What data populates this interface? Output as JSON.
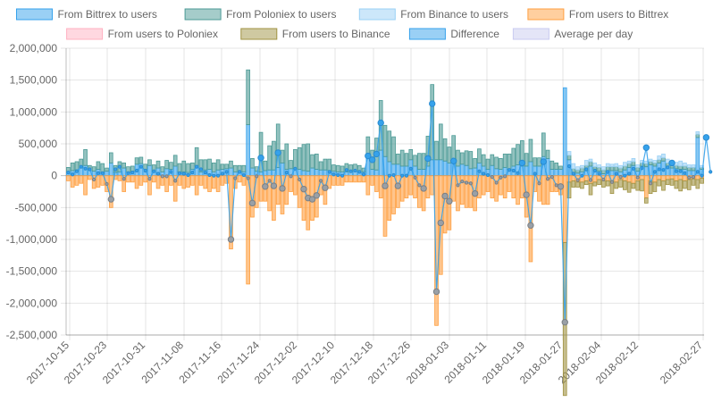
{
  "chart_data": {
    "type": "bar",
    "title": "",
    "xlabel": "",
    "ylabel": "",
    "ylim": [
      -2500000,
      2000000
    ],
    "y_ticks": [
      "2,000,000",
      "1,500,000",
      "1,000,000",
      "500,000",
      "0",
      "-500,000",
      "-1,000,000",
      "-1,500,000",
      "-2,000,000",
      "-2,500,000"
    ],
    "x_ticks": [
      "2017-10-15",
      "2017-10-23",
      "2017-10-31",
      "2017-11-08",
      "2017-11-16",
      "2017-11-24",
      "2017-12-02",
      "2017-12-10",
      "2017-12-18",
      "2017-12-26",
      "2018-01-03",
      "2018-01-11",
      "2018-01-19",
      "2018-01-27",
      "2018-02-04",
      "2018-02-12",
      "2018-02-27"
    ],
    "grid": true,
    "legend_position": "top",
    "series": [
      {
        "name": "From Bittrex to users",
        "color": "#36a2eb",
        "values": [
          60000,
          80000,
          90000,
          120000,
          160000,
          90000,
          70000,
          100000,
          60000,
          70000,
          200000,
          50000,
          60000,
          120000,
          60000,
          70000,
          180000,
          190000,
          100000,
          160000,
          70000,
          120000,
          60000,
          110000,
          100000,
          150000,
          60000,
          60000,
          50000,
          100000,
          160000,
          60000,
          90000,
          100000,
          60000,
          90000,
          100000,
          110000,
          120000,
          60000,
          60000,
          60000,
          800000,
          120000,
          70000,
          60000,
          80000,
          90000,
          90000,
          130000,
          200000,
          100000,
          110000,
          110000,
          100000,
          80000,
          70000,
          120000,
          100000,
          90000,
          90000,
          80000,
          70000,
          60000,
          60000,
          60000,
          60000,
          70000,
          60000,
          60000,
          350000,
          100000,
          90000,
          400000,
          300000,
          220000,
          180000,
          180000,
          150000,
          150000,
          250000,
          150000,
          100000,
          100000,
          150000,
          250000,
          250000,
          250000,
          230000,
          200000,
          250000,
          150000,
          180000,
          160000,
          110000,
          120000,
          200000,
          150000,
          100000,
          160000,
          110000,
          100000,
          130000,
          100000,
          150000,
          170000,
          150000,
          150000,
          220000,
          150000,
          150000,
          300000,
          270000,
          100000,
          100000,
          100000,
          1380000,
          250000,
          50000,
          40000,
          60000,
          80000,
          150000,
          80000,
          70000,
          30000,
          80000,
          80000,
          80000,
          60000,
          90000,
          130000,
          160000,
          70000,
          150000,
          140000,
          170000,
          150000,
          200000,
          230000,
          150000,
          120000,
          110000,
          100000,
          100000,
          80000,
          80000,
          600000,
          100000
        ]
      },
      {
        "name": "From Poloniex to users",
        "color": "#4b9a95",
        "values": [
          70000,
          120000,
          130000,
          140000,
          250000,
          70000,
          70000,
          120000,
          130000,
          50000,
          160000,
          110000,
          160000,
          80000,
          80000,
          80000,
          100000,
          100000,
          80000,
          90000,
          100000,
          110000,
          80000,
          130000,
          110000,
          170000,
          130000,
          170000,
          140000,
          100000,
          280000,
          190000,
          160000,
          160000,
          140000,
          160000,
          80000,
          70000,
          110000,
          100000,
          100000,
          100000,
          860000,
          150000,
          70000,
          620000,
          150000,
          380000,
          450000,
          680000,
          200000,
          400000,
          130000,
          300000,
          340000,
          410000,
          430000,
          210000,
          240000,
          130000,
          170000,
          180000,
          100000,
          100000,
          90000,
          130000,
          110000,
          110000,
          100000,
          60000,
          260000,
          300000,
          500000,
          780000,
          490000,
          480000,
          430000,
          160000,
          250000,
          200000,
          160000,
          170000,
          250000,
          250000,
          470000,
          1180000,
          290000,
          560000,
          350000,
          250000,
          380000,
          250000,
          180000,
          230000,
          270000,
          150000,
          220000,
          180000,
          160000,
          170000,
          180000,
          170000,
          210000,
          240000,
          280000,
          320000,
          400000,
          200000,
          350000,
          130000,
          130000,
          370000,
          130000,
          130000,
          100000,
          50000,
          0,
          70000,
          60000,
          50000,
          60000,
          80000,
          70000,
          60000,
          60000,
          60000,
          60000,
          60000,
          60000,
          60000,
          60000,
          60000,
          60000,
          60000,
          50000,
          50000,
          50000,
          50000,
          50000,
          50000,
          50000,
          50000,
          50000,
          50000,
          50000,
          50000,
          50000,
          50000,
          30000
        ]
      },
      {
        "name": "From Binance to users",
        "color": "#9ad0f5",
        "values": [
          0,
          0,
          0,
          0,
          0,
          0,
          0,
          0,
          0,
          0,
          0,
          0,
          0,
          0,
          0,
          0,
          0,
          0,
          0,
          0,
          0,
          0,
          0,
          0,
          0,
          0,
          0,
          0,
          0,
          0,
          0,
          0,
          0,
          0,
          0,
          0,
          0,
          0,
          0,
          0,
          0,
          0,
          0,
          0,
          0,
          0,
          0,
          0,
          0,
          0,
          0,
          0,
          0,
          0,
          0,
          0,
          0,
          0,
          0,
          0,
          0,
          0,
          0,
          0,
          0,
          0,
          0,
          0,
          0,
          0,
          0,
          0,
          0,
          0,
          0,
          0,
          0,
          0,
          0,
          0,
          0,
          0,
          0,
          0,
          0,
          0,
          0,
          0,
          0,
          0,
          0,
          0,
          0,
          0,
          0,
          0,
          0,
          0,
          0,
          0,
          0,
          0,
          0,
          0,
          0,
          0,
          0,
          0,
          0,
          0,
          0,
          0,
          0,
          0,
          0,
          0,
          0,
          60000,
          80000,
          50000,
          40000,
          80000,
          40000,
          60000,
          40000,
          50000,
          50000,
          40000,
          50000,
          40000,
          60000,
          40000,
          50000,
          40000,
          40000,
          40000,
          40000,
          40000,
          60000,
          60000,
          60000,
          50000,
          50000,
          80000,
          50000,
          40000,
          40000,
          40000,
          30000
        ]
      },
      {
        "name": "From users to Bittrex",
        "color": "#ff9f40",
        "values": [
          -80000,
          -180000,
          -150000,
          -120000,
          -300000,
          -60000,
          -200000,
          -180000,
          -150000,
          -250000,
          -500000,
          -60000,
          -80000,
          -250000,
          -100000,
          -100000,
          -200000,
          -150000,
          -100000,
          -300000,
          -100000,
          -200000,
          -150000,
          -250000,
          -150000,
          -400000,
          -150000,
          -200000,
          -180000,
          -150000,
          -300000,
          -150000,
          -200000,
          -250000,
          -200000,
          -250000,
          -150000,
          -120000,
          -1150000,
          -200000,
          -100000,
          -150000,
          -1700000,
          -650000,
          -500000,
          -400000,
          -400000,
          -550000,
          -700000,
          -450000,
          -600000,
          -450000,
          -250000,
          -300000,
          -500000,
          -700000,
          -850000,
          -700000,
          -650000,
          -300000,
          -450000,
          -200000,
          -150000,
          -150000,
          -150000,
          -100000,
          -100000,
          -100000,
          -100000,
          -100000,
          -300000,
          -150000,
          -250000,
          -350000,
          -950000,
          -700000,
          -600000,
          -500000,
          -400000,
          -350000,
          -300000,
          -350000,
          -500000,
          -550000,
          -350000,
          -300000,
          -2350000,
          -1550000,
          -900000,
          -850000,
          -400000,
          -550000,
          -450000,
          -500000,
          -500000,
          -550000,
          -350000,
          -300000,
          -250000,
          -350000,
          -400000,
          -300000,
          -350000,
          -250000,
          -350000,
          -450000,
          -350000,
          -650000,
          -1350000,
          -250000,
          -400000,
          -450000,
          -450000,
          -250000,
          -250000,
          -300000,
          -1050000,
          -100000,
          -80000,
          -100000,
          -100000,
          -80000,
          -120000,
          -100000,
          -60000,
          -80000,
          -80000,
          -80000,
          -100000,
          -60000,
          -80000,
          -100000,
          -120000,
          -80000,
          -60000,
          -350000,
          -80000,
          -100000,
          -60000,
          -80000,
          -60000,
          -50000,
          -80000,
          -60000,
          -80000,
          -60000,
          -50000,
          -60000,
          -40000
        ]
      },
      {
        "name": "From users to Poloniex",
        "color": "#ffb1c1",
        "values": [
          0,
          0,
          0,
          0,
          0,
          0,
          0,
          0,
          0,
          0,
          0,
          0,
          0,
          0,
          0,
          0,
          0,
          0,
          0,
          0,
          0,
          0,
          0,
          0,
          0,
          0,
          0,
          0,
          0,
          0,
          0,
          0,
          0,
          0,
          0,
          0,
          0,
          0,
          0,
          0,
          0,
          0,
          0,
          0,
          0,
          0,
          0,
          0,
          0,
          0,
          0,
          0,
          0,
          0,
          0,
          0,
          0,
          0,
          0,
          0,
          0,
          0,
          0,
          0,
          0,
          0,
          0,
          0,
          0,
          0,
          0,
          0,
          0,
          0,
          0,
          0,
          0,
          0,
          0,
          0,
          0,
          0,
          0,
          0,
          0,
          0,
          0,
          0,
          0,
          0,
          0,
          0,
          0,
          0,
          0,
          0,
          0,
          0,
          0,
          0,
          0,
          0,
          0,
          0,
          0,
          0,
          0,
          0,
          0,
          0,
          0,
          0,
          0,
          0,
          0,
          0,
          0,
          0,
          0,
          0,
          0,
          0,
          0,
          0,
          0,
          0,
          0,
          0,
          0,
          0,
          0,
          0,
          0,
          0,
          0,
          0,
          0,
          0,
          0,
          0,
          0,
          0,
          0,
          0,
          0,
          0,
          0,
          0,
          0
        ]
      },
      {
        "name": "From users to Binance",
        "color": "#a09343",
        "values": [
          0,
          0,
          0,
          0,
          0,
          0,
          0,
          0,
          0,
          0,
          0,
          0,
          0,
          0,
          0,
          0,
          0,
          0,
          0,
          0,
          0,
          0,
          0,
          0,
          0,
          0,
          0,
          0,
          0,
          0,
          0,
          0,
          0,
          0,
          0,
          0,
          0,
          0,
          0,
          0,
          0,
          0,
          0,
          0,
          0,
          0,
          0,
          0,
          0,
          0,
          0,
          0,
          0,
          0,
          0,
          0,
          0,
          0,
          0,
          0,
          0,
          0,
          0,
          0,
          0,
          0,
          0,
          0,
          0,
          0,
          0,
          0,
          0,
          0,
          0,
          0,
          0,
          0,
          0,
          0,
          0,
          0,
          0,
          0,
          0,
          0,
          0,
          0,
          0,
          0,
          0,
          0,
          0,
          0,
          0,
          0,
          0,
          0,
          0,
          0,
          0,
          0,
          0,
          0,
          0,
          0,
          0,
          0,
          0,
          0,
          0,
          0,
          0,
          0,
          0,
          0,
          -2400000,
          -250000,
          -100000,
          -80000,
          -100000,
          -60000,
          -180000,
          -60000,
          -80000,
          -100000,
          -80000,
          -200000,
          -100000,
          -120000,
          -140000,
          -160000,
          -80000,
          -150000,
          -180000,
          -80000,
          -200000,
          -150000,
          -100000,
          -150000,
          -80000,
          -100000,
          -120000,
          -180000,
          -120000,
          -160000,
          -100000,
          -140000,
          -80000
        ]
      },
      {
        "name": "Difference",
        "color": "#36a2eb",
        "line": true,
        "values": [
          50000,
          20000,
          70000,
          140000,
          110000,
          100000,
          -60000,
          40000,
          40000,
          -130000,
          -370000,
          100000,
          140000,
          -50000,
          40000,
          50000,
          80000,
          140000,
          80000,
          -50000,
          70000,
          30000,
          -10000,
          -10000,
          60000,
          -80000,
          40000,
          30000,
          10000,
          50000,
          140000,
          100000,
          50000,
          10000,
          0,
          0,
          30000,
          60000,
          -1000000,
          -40000,
          60000,
          10000,
          -40000,
          -430000,
          -10000,
          280000,
          -170000,
          -80000,
          -160000,
          360000,
          -200000,
          50000,
          -10000,
          110000,
          -60000,
          -210000,
          -350000,
          -370000,
          -310000,
          -80000,
          -190000,
          60000,
          20000,
          10000,
          0,
          90000,
          70000,
          80000,
          60000,
          20000,
          310000,
          250000,
          340000,
          830000,
          -160000,
          0,
          10000,
          -160000,
          0,
          0,
          110000,
          -30000,
          -150000,
          -200000,
          270000,
          1130000,
          -1820000,
          -740000,
          -320000,
          -400000,
          230000,
          -150000,
          -90000,
          -110000,
          -120000,
          -280000,
          70000,
          30000,
          10000,
          -20000,
          -110000,
          -30000,
          -10000,
          90000,
          80000,
          40000,
          200000,
          -300000,
          -780000,
          30000,
          -120000,
          220000,
          -50000,
          -20000,
          -150000,
          -170000,
          -2300000,
          150000,
          30000,
          -70000,
          0,
          100000,
          -70000,
          80000,
          30000,
          -60000,
          60000,
          -100000,
          30000,
          -20000,
          0,
          30000,
          110000,
          -30000,
          120000,
          440000,
          -120000,
          60000,
          100000,
          90000,
          130000,
          200000,
          70000,
          70000,
          40000,
          -30000,
          -20000,
          60000,
          0,
          600000,
          60000
        ]
      },
      {
        "name": "Average per day",
        "color": "#c9cbf0",
        "values": []
      }
    ]
  }
}
